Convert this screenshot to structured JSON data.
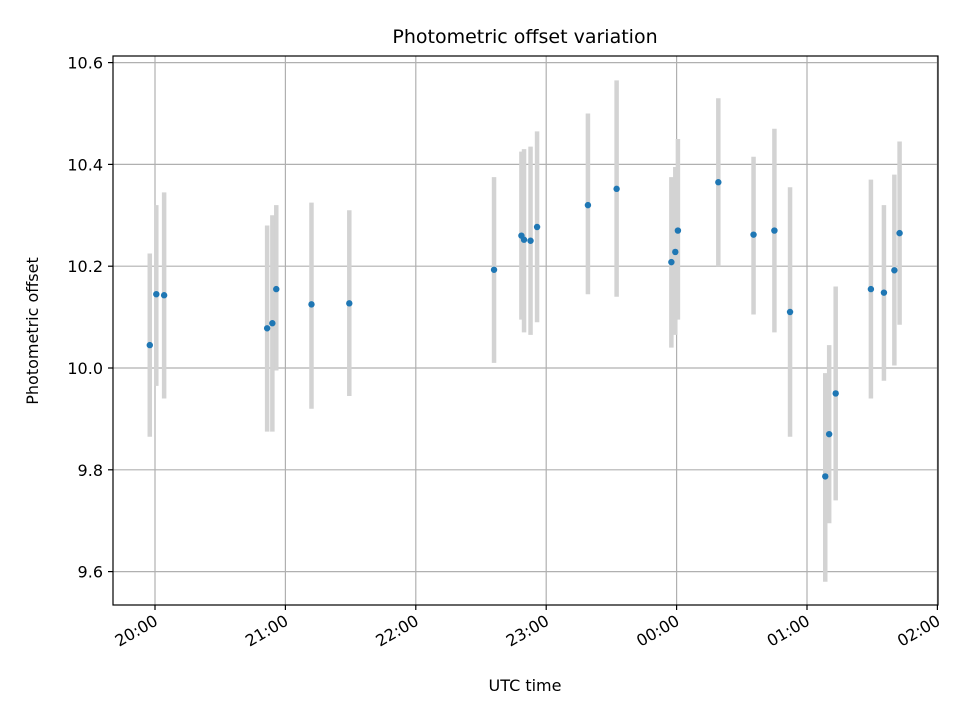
{
  "chart_data": {
    "type": "scatter",
    "title": "Photometric offset variation",
    "xlabel": "UTC time",
    "ylabel": "Photometric offset",
    "x_unit": "hours (relative to 20:00 UTC)",
    "xlim": [
      -0.3,
      6.0
    ],
    "ylim": [
      9.53,
      10.615
    ],
    "x_ticks": [
      {
        "value": 0,
        "label": "20:00"
      },
      {
        "value": 1,
        "label": "21:00"
      },
      {
        "value": 2,
        "label": "22:00"
      },
      {
        "value": 3,
        "label": "23:00"
      },
      {
        "value": 4,
        "label": "00:00"
      },
      {
        "value": 5,
        "label": "01:00"
      },
      {
        "value": 6,
        "label": "02:00"
      }
    ],
    "y_ticks": [
      {
        "value": 9.6,
        "label": "9.6"
      },
      {
        "value": 9.8,
        "label": "9.8"
      },
      {
        "value": 10.0,
        "label": "10.0"
      },
      {
        "value": 10.2,
        "label": "10.2"
      },
      {
        "value": 10.4,
        "label": "10.4"
      },
      {
        "value": 10.6,
        "label": "10.6"
      }
    ],
    "grid": true,
    "marker_color": "#1f77b4",
    "errorbar_color": "#d3d3d3",
    "series": [
      {
        "points": [
          {
            "x": -0.04,
            "y": 10.045,
            "ylo": 9.865,
            "yhi": 10.225
          },
          {
            "x": 0.01,
            "y": 10.145,
            "ylo": 9.965,
            "yhi": 10.32
          },
          {
            "x": 0.07,
            "y": 10.143,
            "ylo": 9.94,
            "yhi": 10.345
          },
          {
            "x": 0.86,
            "y": 10.078,
            "ylo": 9.875,
            "yhi": 10.28
          },
          {
            "x": 0.9,
            "y": 10.088,
            "ylo": 9.875,
            "yhi": 10.3
          },
          {
            "x": 0.93,
            "y": 10.155,
            "ylo": 9.995,
            "yhi": 10.32
          },
          {
            "x": 1.2,
            "y": 10.125,
            "ylo": 9.92,
            "yhi": 10.325
          },
          {
            "x": 1.49,
            "y": 10.127,
            "ylo": 9.945,
            "yhi": 10.31
          },
          {
            "x": 2.6,
            "y": 10.193,
            "ylo": 10.01,
            "yhi": 10.375
          },
          {
            "x": 2.81,
            "y": 10.26,
            "ylo": 10.095,
            "yhi": 10.425
          },
          {
            "x": 2.83,
            "y": 10.252,
            "ylo": 10.07,
            "yhi": 10.43
          },
          {
            "x": 2.88,
            "y": 10.25,
            "ylo": 10.065,
            "yhi": 10.435
          },
          {
            "x": 2.93,
            "y": 10.277,
            "ylo": 10.09,
            "yhi": 10.465
          },
          {
            "x": 3.32,
            "y": 10.32,
            "ylo": 10.145,
            "yhi": 10.5
          },
          {
            "x": 3.54,
            "y": 10.352,
            "ylo": 10.14,
            "yhi": 10.565
          },
          {
            "x": 3.96,
            "y": 10.208,
            "ylo": 10.04,
            "yhi": 10.375
          },
          {
            "x": 3.99,
            "y": 10.228,
            "ylo": 10.065,
            "yhi": 10.395
          },
          {
            "x": 4.01,
            "y": 10.27,
            "ylo": 10.095,
            "yhi": 10.45
          },
          {
            "x": 4.32,
            "y": 10.365,
            "ylo": 10.2,
            "yhi": 10.53
          },
          {
            "x": 4.59,
            "y": 10.262,
            "ylo": 10.105,
            "yhi": 10.415
          },
          {
            "x": 4.75,
            "y": 10.27,
            "ylo": 10.07,
            "yhi": 10.47
          },
          {
            "x": 4.87,
            "y": 10.11,
            "ylo": 9.865,
            "yhi": 10.355
          },
          {
            "x": 5.14,
            "y": 9.787,
            "ylo": 9.58,
            "yhi": 9.99
          },
          {
            "x": 5.17,
            "y": 9.87,
            "ylo": 9.695,
            "yhi": 10.045
          },
          {
            "x": 5.22,
            "y": 9.95,
            "ylo": 9.74,
            "yhi": 10.16
          },
          {
            "x": 5.49,
            "y": 10.155,
            "ylo": 9.94,
            "yhi": 10.37
          },
          {
            "x": 5.59,
            "y": 10.148,
            "ylo": 9.975,
            "yhi": 10.32
          },
          {
            "x": 5.67,
            "y": 10.192,
            "ylo": 10.005,
            "yhi": 10.38
          },
          {
            "x": 5.71,
            "y": 10.265,
            "ylo": 10.085,
            "yhi": 10.445
          }
        ]
      }
    ]
  }
}
